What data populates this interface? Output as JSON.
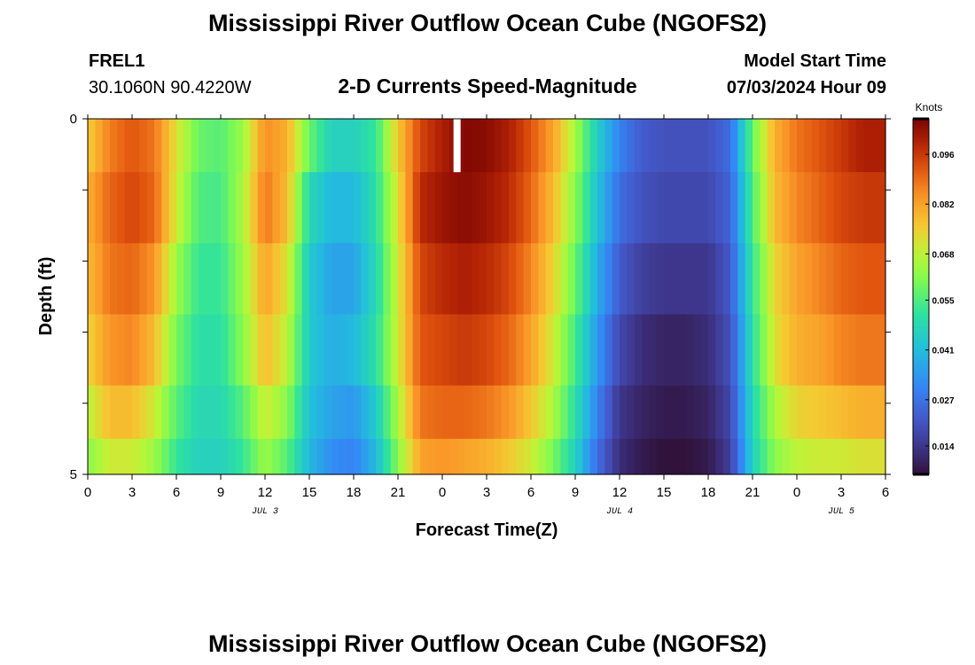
{
  "figure": {
    "title": "Mississippi River Outflow Ocean Cube (NGOFS2)",
    "bottom_title": "Mississippi River Outflow Ocean Cube (NGOFS2)",
    "station_id": "FREL1",
    "station_coords": "30.1060N  90.4220W",
    "plot_title": "2-D Currents Speed-Magnitude",
    "model_start_label": "Model Start Time",
    "model_start_value": "07/03/2024 Hour 09"
  },
  "chart_data": {
    "type": "heatmap",
    "title": "2-D Currents Speed-Magnitude",
    "xlabel": "Forecast Time(Z)",
    "ylabel": "Depth (ft)",
    "x_tick_labels": [
      "0",
      "3",
      "6",
      "9",
      "12",
      "15",
      "18",
      "21",
      "0",
      "3",
      "6",
      "9",
      "12",
      "15",
      "18",
      "21",
      "0",
      "3",
      "6"
    ],
    "x_range_hours": [
      0,
      54
    ],
    "date_labels": [
      {
        "text": "JUL 3",
        "hour": 12
      },
      {
        "text": "JUL 4",
        "hour": 36
      },
      {
        "text": "JUL 5",
        "hour": 51
      }
    ],
    "y_range": [
      0,
      5
    ],
    "y_tick_labels": [
      "0",
      "5"
    ],
    "depth_levels": [
      0.25,
      1.25,
      2.25,
      3.25,
      4.25,
      4.75
    ],
    "colorbar": {
      "units": "Knots",
      "min": 0.006,
      "max": 0.106,
      "tick_labels": [
        "0.014",
        "0.027",
        "0.041",
        "0.055",
        "0.068",
        "0.082",
        "0.096"
      ]
    },
    "missing_cell": {
      "hour": 25,
      "depth_level": 0
    },
    "profile_hours": [
      0,
      1.5,
      3,
      4.5,
      6,
      7.5,
      9,
      10.5,
      12,
      13.5,
      15,
      16.5,
      18,
      19.5,
      21,
      22.5,
      24,
      25.5,
      27,
      28.5,
      30,
      31.5,
      33,
      34.5,
      36,
      37.5,
      39,
      40.5,
      42,
      43.5,
      45,
      46.5,
      48,
      49.5,
      51,
      52.5,
      54
    ],
    "profiles": [
      [
        0.075,
        0.087,
        0.092,
        0.088,
        0.072,
        0.058,
        0.056,
        0.064,
        0.085,
        0.08,
        0.058,
        0.046,
        0.046,
        0.052,
        0.076,
        0.094,
        0.1,
        0.105,
        0.104,
        0.1,
        0.092,
        0.082,
        0.065,
        0.045,
        0.03,
        0.022,
        0.02,
        0.02,
        0.02,
        0.026,
        0.058,
        0.08,
        0.088,
        0.092,
        0.096,
        0.1,
        0.1
      ],
      [
        0.08,
        0.09,
        0.094,
        0.09,
        0.07,
        0.055,
        0.054,
        0.066,
        0.088,
        0.078,
        0.048,
        0.04,
        0.04,
        0.05,
        0.072,
        0.098,
        0.102,
        0.104,
        0.102,
        0.098,
        0.09,
        0.078,
        0.062,
        0.042,
        0.026,
        0.02,
        0.018,
        0.018,
        0.018,
        0.024,
        0.055,
        0.078,
        0.086,
        0.09,
        0.094,
        0.096,
        0.096
      ],
      [
        0.078,
        0.088,
        0.09,
        0.084,
        0.064,
        0.052,
        0.052,
        0.064,
        0.082,
        0.072,
        0.044,
        0.036,
        0.036,
        0.048,
        0.07,
        0.094,
        0.098,
        0.1,
        0.098,
        0.094,
        0.086,
        0.074,
        0.058,
        0.038,
        0.022,
        0.016,
        0.014,
        0.014,
        0.014,
        0.022,
        0.052,
        0.074,
        0.082,
        0.086,
        0.09,
        0.092,
        0.092
      ],
      [
        0.074,
        0.084,
        0.086,
        0.078,
        0.06,
        0.05,
        0.05,
        0.062,
        0.078,
        0.068,
        0.044,
        0.038,
        0.04,
        0.05,
        0.07,
        0.092,
        0.094,
        0.096,
        0.094,
        0.09,
        0.082,
        0.07,
        0.054,
        0.034,
        0.018,
        0.012,
        0.01,
        0.01,
        0.012,
        0.02,
        0.05,
        0.072,
        0.08,
        0.082,
        0.086,
        0.088,
        0.088
      ],
      [
        0.068,
        0.078,
        0.078,
        0.07,
        0.056,
        0.048,
        0.048,
        0.056,
        0.07,
        0.062,
        0.042,
        0.036,
        0.034,
        0.044,
        0.066,
        0.088,
        0.09,
        0.09,
        0.088,
        0.084,
        0.076,
        0.066,
        0.05,
        0.03,
        0.014,
        0.01,
        0.008,
        0.008,
        0.01,
        0.018,
        0.048,
        0.066,
        0.074,
        0.076,
        0.078,
        0.08,
        0.08
      ],
      [
        0.062,
        0.07,
        0.07,
        0.064,
        0.052,
        0.046,
        0.046,
        0.052,
        0.064,
        0.056,
        0.04,
        0.032,
        0.03,
        0.04,
        0.062,
        0.082,
        0.084,
        0.082,
        0.08,
        0.076,
        0.07,
        0.06,
        0.046,
        0.026,
        0.012,
        0.008,
        0.006,
        0.006,
        0.008,
        0.016,
        0.046,
        0.062,
        0.068,
        0.07,
        0.07,
        0.072,
        0.072
      ]
    ]
  }
}
